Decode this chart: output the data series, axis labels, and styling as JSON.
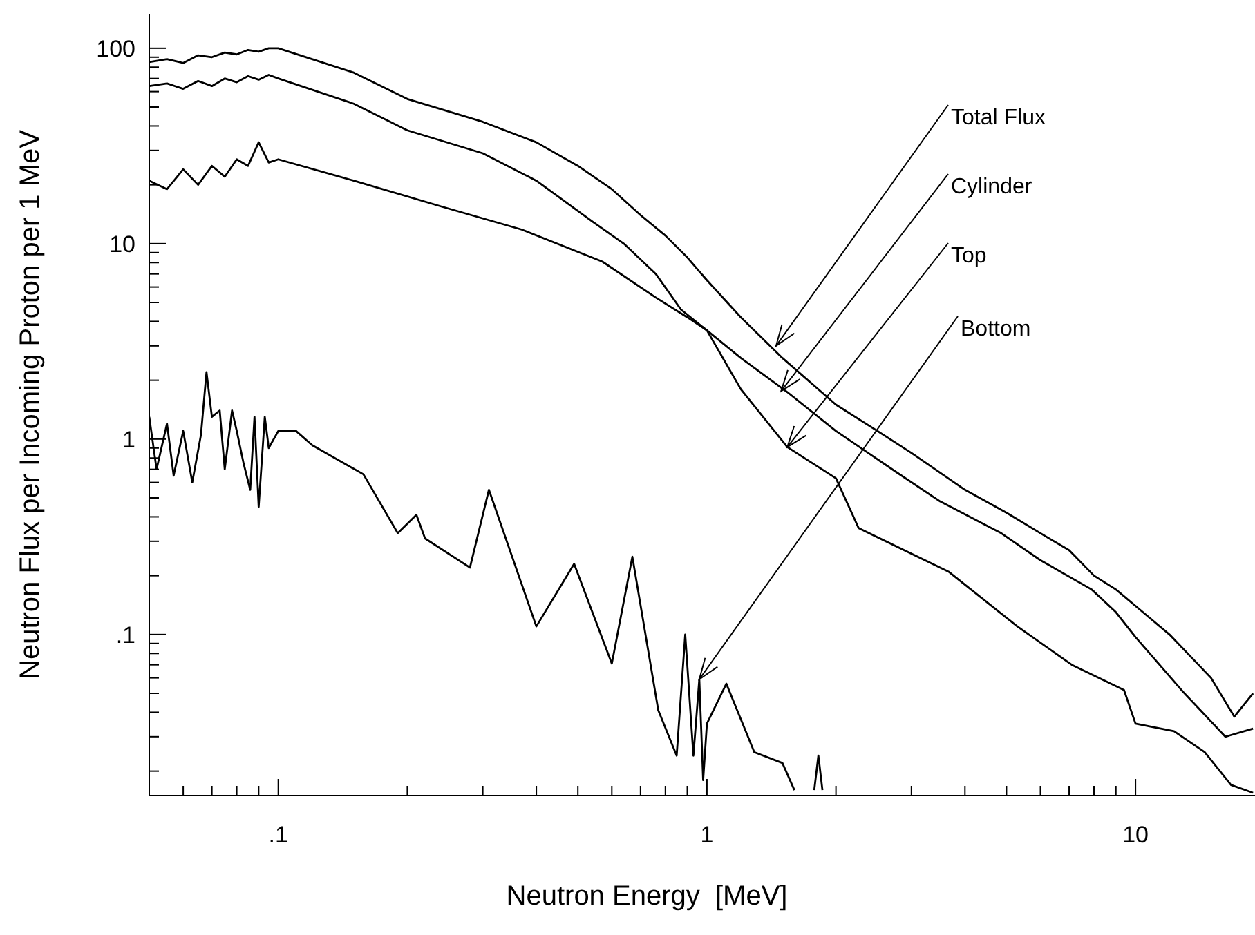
{
  "chart_data": {
    "type": "line",
    "xlabel": "Neutron Energy  [MeV]",
    "ylabel": "Neutron Flux per Incoming Proton per 1 MeV",
    "log": "xy",
    "marker": "none",
    "line_style": "solid",
    "xlim": [
      0.05,
      19
    ],
    "ylim": [
      0.015,
      150
    ],
    "xticks": [
      {
        "value": 0.06,
        "label": null
      },
      {
        "value": 0.07,
        "label": null
      },
      {
        "value": 0.08,
        "label": null
      },
      {
        "value": 0.09,
        "label": null
      },
      {
        "value": 0.1,
        "label": ".1"
      },
      {
        "value": 0.2,
        "label": null
      },
      {
        "value": 0.3,
        "label": null
      },
      {
        "value": 0.4,
        "label": null
      },
      {
        "value": 0.5,
        "label": null
      },
      {
        "value": 0.6,
        "label": null
      },
      {
        "value": 0.7,
        "label": null
      },
      {
        "value": 0.8,
        "label": null
      },
      {
        "value": 0.9,
        "label": null
      },
      1,
      {
        "value": 2,
        "label": null
      },
      {
        "value": 3,
        "label": null
      },
      {
        "value": 4,
        "label": null
      },
      {
        "value": 5,
        "label": null
      },
      {
        "value": 6,
        "label": null
      },
      {
        "value": 7,
        "label": null
      },
      {
        "value": 8,
        "label": null
      },
      {
        "value": 9,
        "label": null
      },
      10
    ],
    "yticks": [
      {
        "value": 0.02,
        "label": null
      },
      {
        "value": 0.03,
        "label": null
      },
      {
        "value": 0.04,
        "label": null
      },
      {
        "value": 0.05,
        "label": null
      },
      {
        "value": 0.06,
        "label": null
      },
      {
        "value": 0.07,
        "label": null
      },
      {
        "value": 0.08,
        "label": null
      },
      {
        "value": 0.09,
        "label": null
      },
      {
        "value": 0.1,
        "label": ".1"
      },
      {
        "value": 0.2,
        "label": null
      },
      {
        "value": 0.3,
        "label": null
      },
      {
        "value": 0.4,
        "label": null
      },
      {
        "value": 0.5,
        "label": null
      },
      {
        "value": 0.6,
        "label": null
      },
      {
        "value": 0.7,
        "label": null
      },
      {
        "value": 0.8,
        "label": null
      },
      {
        "value": 0.9,
        "label": null
      },
      1,
      {
        "value": 2,
        "label": null
      },
      {
        "value": 3,
        "label": null
      },
      {
        "value": 4,
        "label": null
      },
      {
        "value": 5,
        "label": null
      },
      {
        "value": 6,
        "label": null
      },
      {
        "value": 7,
        "label": null
      },
      {
        "value": 8,
        "label": null
      },
      {
        "value": 9,
        "label": null
      },
      10,
      {
        "value": 20,
        "label": null
      },
      {
        "value": 30,
        "label": null
      },
      {
        "value": 40,
        "label": null
      },
      {
        "value": 50,
        "label": null
      },
      {
        "value": 60,
        "label": null
      },
      {
        "value": 70,
        "label": null
      },
      {
        "value": 80,
        "label": null
      },
      {
        "value": 90,
        "label": null
      },
      100
    ],
    "annotations": [
      {
        "text": "Total Flux",
        "x": 1.45,
        "y": 3.0
      },
      {
        "text": "Cylinder",
        "x": 1.49,
        "y": 1.76
      },
      {
        "text": "Top",
        "x": 1.54,
        "y": 0.91
      },
      {
        "text": "Bottom",
        "x": 0.96,
        "y": 0.059
      }
    ],
    "series": [
      {
        "color": "#000000",
        "x": [
          0.05,
          0.055,
          0.06,
          0.065,
          0.07,
          0.075,
          0.08,
          0.085,
          0.09,
          0.095,
          0.1,
          0.15,
          0.2,
          0.3,
          0.4,
          0.5,
          0.6,
          0.7,
          0.8,
          0.9,
          1,
          1.2,
          1.5,
          2,
          2.5,
          3,
          4,
          5,
          6,
          7,
          8,
          9,
          10,
          12,
          15,
          17,
          18.8
        ],
        "values": [
          85,
          88,
          84,
          92,
          90,
          95,
          93,
          98,
          96,
          100,
          100,
          75,
          55,
          42,
          33,
          25,
          19,
          14,
          11,
          8.5,
          6.5,
          4.2,
          2.6,
          1.5,
          1.1,
          0.85,
          0.55,
          0.42,
          0.33,
          0.27,
          0.2,
          0.17,
          0.14,
          0.1,
          0.06,
          0.038,
          0.05
        ]
      },
      {
        "color": "#000000",
        "x": [
          0.05,
          0.055,
          0.06,
          0.065,
          0.07,
          0.075,
          0.08,
          0.085,
          0.09,
          0.095,
          0.1,
          0.15,
          0.2,
          0.3,
          0.4,
          0.54,
          0.64,
          0.76,
          0.87,
          1,
          1.2,
          1.54,
          2,
          2.76,
          3.5,
          4.86,
          6,
          7.9,
          9,
          10,
          12.9,
          16.2,
          18.8
        ],
        "values": [
          64,
          66,
          62,
          68,
          64,
          70,
          67,
          72,
          69,
          73,
          70,
          52,
          38,
          29,
          21,
          13,
          10,
          7,
          4.6,
          3.6,
          2.6,
          1.74,
          1.1,
          0.68,
          0.48,
          0.33,
          0.24,
          0.17,
          0.13,
          0.097,
          0.051,
          0.03,
          0.033
        ]
      },
      {
        "color": "#000000",
        "x": [
          0.05,
          0.055,
          0.06,
          0.065,
          0.07,
          0.075,
          0.08,
          0.085,
          0.09,
          0.095,
          0.1,
          0.15,
          0.24,
          0.37,
          0.57,
          0.76,
          0.9,
          1,
          1.2,
          1.54,
          2,
          2.26,
          3.66,
          5.3,
          7.1,
          9.4,
          10,
          12.3,
          14.5,
          16.7,
          18.8
        ],
        "values": [
          21,
          19,
          24,
          20,
          25,
          22,
          27,
          25,
          33,
          26,
          27,
          21,
          15.5,
          11.8,
          8.1,
          5.3,
          4.2,
          3.6,
          1.8,
          0.91,
          0.63,
          0.35,
          0.21,
          0.11,
          0.07,
          0.052,
          0.035,
          0.032,
          0.025,
          0.017,
          0.0155
        ]
      },
      {
        "color": "#000000",
        "x": [
          0.05,
          0.052,
          0.055,
          0.057,
          0.06,
          0.063,
          0.066,
          0.068,
          0.07,
          0.073,
          0.075,
          0.078,
          0.08,
          0.083,
          0.086,
          0.088,
          0.09,
          0.093,
          0.095,
          0.1,
          0.11,
          0.12,
          0.158,
          0.19,
          0.21,
          0.22,
          0.28,
          0.31,
          0.4,
          0.49,
          0.6,
          0.67,
          0.77,
          0.85,
          0.89,
          0.93,
          0.96,
          0.98,
          1,
          1.11,
          1.29,
          1.5,
          1.6,
          1.7,
          1.78,
          1.82,
          1.86
        ],
        "values": [
          1.3,
          0.7,
          1.2,
          0.65,
          1.1,
          0.6,
          1.05,
          2.2,
          1.3,
          1.4,
          0.7,
          1.4,
          1.1,
          0.75,
          0.55,
          1.3,
          0.45,
          1.3,
          0.9,
          1.1,
          1.1,
          0.93,
          0.66,
          0.33,
          0.41,
          0.31,
          0.22,
          0.55,
          0.11,
          0.23,
          0.071,
          0.25,
          0.041,
          0.024,
          0.1,
          0.024,
          0.059,
          0.018,
          0.035,
          0.056,
          0.025,
          0.022,
          0.016,
          null,
          0.016,
          0.024,
          0.016
        ]
      }
    ]
  }
}
